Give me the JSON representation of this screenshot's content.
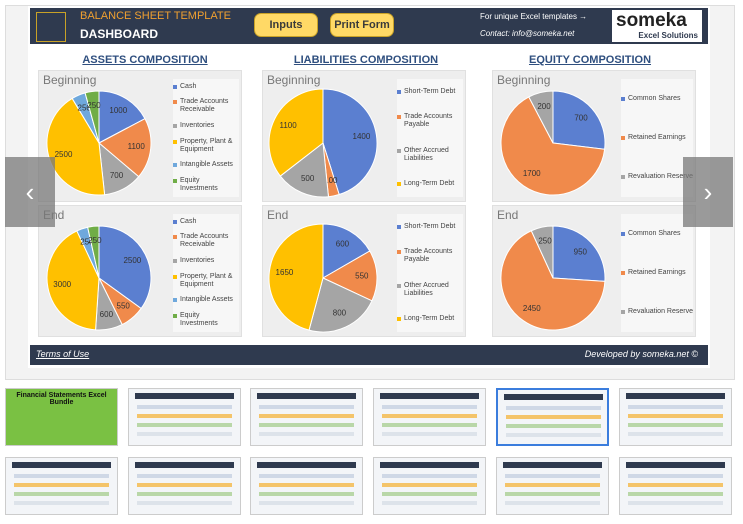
{
  "header": {
    "title": "BALANCE SHEET TEMPLATE",
    "subtitle": "DASHBOARD",
    "buttons": [
      "Inputs",
      "Print Form"
    ],
    "promo": "For unique Excel templates →",
    "contact": "Contact: info@someka.net",
    "logo": "someka",
    "logo_sub": "Excel Solutions"
  },
  "sections": [
    "ASSETS COMPOSITION",
    "LIABILITIES COMPOSITION",
    "EQUITY COMPOSITION"
  ],
  "chart_data": [
    {
      "type": "pie",
      "title": "Beginning",
      "categories": [
        "Cash",
        "Trade Accounts Receivable",
        "Inventories",
        "Property, Plant & Equipment",
        "Intangible Assets",
        "Equity Investments"
      ],
      "values": [
        1000,
        1100,
        700,
        2500,
        250,
        250
      ],
      "colors": [
        "#5b7fd0",
        "#f08a4b",
        "#a5a5a5",
        "#ffc000",
        "#6fa8dc",
        "#70ad47"
      ]
    },
    {
      "type": "pie",
      "title": "End",
      "categories": [
        "Cash",
        "Trade Accounts Receivable",
        "Inventories",
        "Property, Plant & Equipment",
        "Intangible Assets",
        "Equity Investments"
      ],
      "values": [
        2500,
        550,
        600,
        3000,
        250,
        250
      ],
      "colors": [
        "#5b7fd0",
        "#f08a4b",
        "#a5a5a5",
        "#ffc000",
        "#6fa8dc",
        "#70ad47"
      ]
    },
    {
      "type": "pie",
      "title": "Beginning",
      "categories": [
        "Short-Term Debt",
        "Trade Accounts Payable",
        "Other Accrued Liabilities",
        "Long-Term Debt"
      ],
      "values": [
        1400,
        100,
        500,
        1100
      ],
      "colors": [
        "#5b7fd0",
        "#f08a4b",
        "#a5a5a5",
        "#ffc000"
      ]
    },
    {
      "type": "pie",
      "title": "End",
      "categories": [
        "Short-Term Debt",
        "Trade Accounts Payable",
        "Other Accrued Liabilities",
        "Long-Term Debt"
      ],
      "values": [
        600,
        550,
        800,
        1650
      ],
      "colors": [
        "#5b7fd0",
        "#f08a4b",
        "#a5a5a5",
        "#ffc000"
      ]
    },
    {
      "type": "pie",
      "title": "Beginning",
      "categories": [
        "Common Shares",
        "Retained Earnings",
        "Revaluation Reserve"
      ],
      "values": [
        700,
        1700,
        200
      ],
      "colors": [
        "#5b7fd0",
        "#f08a4b",
        "#a5a5a5"
      ]
    },
    {
      "type": "pie",
      "title": "End",
      "categories": [
        "Common Shares",
        "Retained Earnings",
        "Revaluation Reserve"
      ],
      "values": [
        950,
        2450,
        250
      ],
      "colors": [
        "#5b7fd0",
        "#f08a4b",
        "#a5a5a5"
      ]
    }
  ],
  "footer": {
    "terms": "Terms of Use",
    "credit": "Developed by someka.net ©"
  },
  "thumbnails": {
    "first_caption": "Financial Statements Excel Bundle"
  }
}
